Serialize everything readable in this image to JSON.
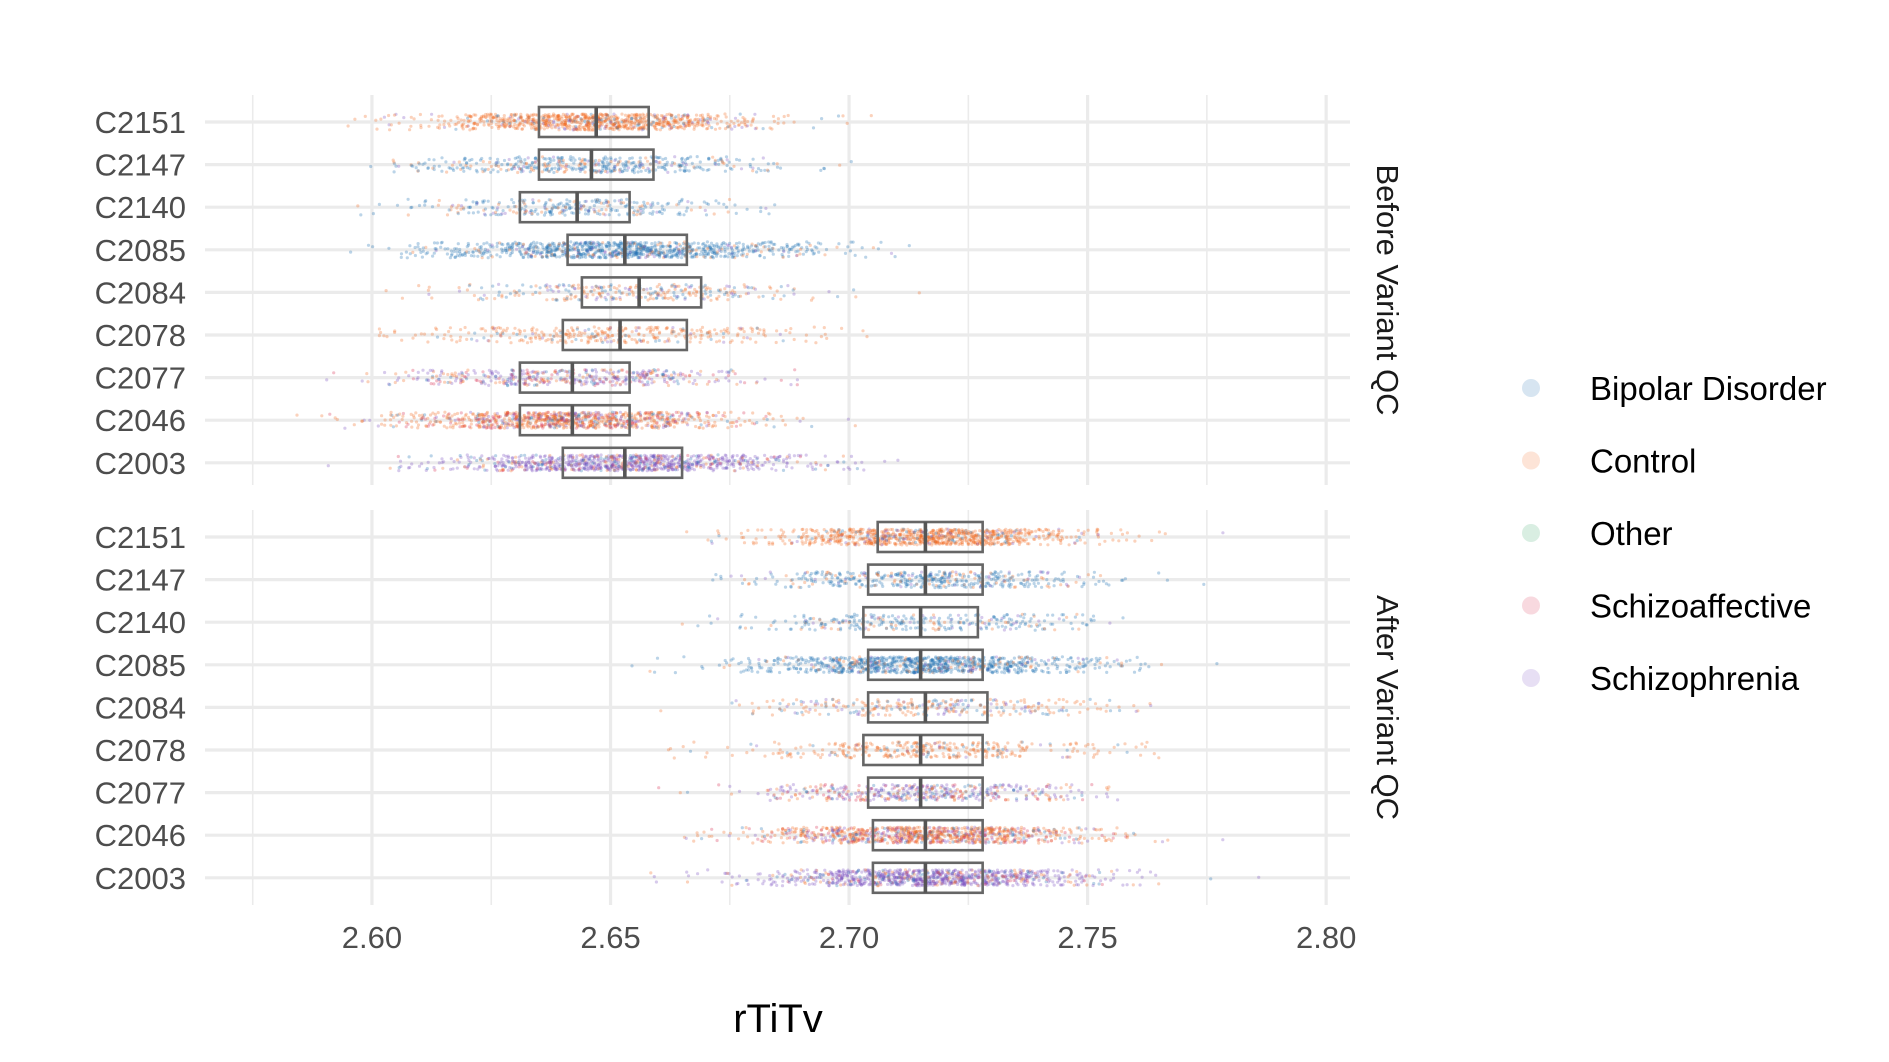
{
  "chart_data": {
    "type": "scatter",
    "subtype": "jittered strip plot with boxplots, faceted",
    "xlabel": "rTiTv",
    "ylabel": "",
    "xlim": [
      2.565,
      2.805
    ],
    "x_ticks": [
      2.6,
      2.65,
      2.7,
      2.75,
      2.8
    ],
    "x_tick_labels": [
      "2.60",
      "2.65",
      "2.70",
      "2.75",
      "2.80"
    ],
    "categories": [
      "C2151",
      "C2147",
      "C2140",
      "C2085",
      "C2084",
      "C2078",
      "C2077",
      "C2046",
      "C2003"
    ],
    "legend": {
      "placement": "right",
      "entries": [
        {
          "name": "Bipolar Disorder",
          "color": "#1f6fb4"
        },
        {
          "name": "Control",
          "color": "#f26b21"
        },
        {
          "name": "Other",
          "color": "#2ca25f"
        },
        {
          "name": "Schizoaffective",
          "color": "#d62b50"
        },
        {
          "name": "Schizophrenia",
          "color": "#7b4fc0"
        }
      ]
    },
    "facets": [
      {
        "strip_label": "Before Variant QC",
        "groups": [
          {
            "category": "C2151",
            "box": [
              2.635,
              2.647,
              2.658
            ],
            "range": [
              2.578,
              2.712
            ],
            "mix": {
              "Control": 0.85,
              "Bipolar Disorder": 0.08,
              "Schizophrenia": 0.07
            },
            "n": 900
          },
          {
            "category": "C2147",
            "box": [
              2.635,
              2.646,
              2.659
            ],
            "range": [
              2.584,
              2.705
            ],
            "mix": {
              "Bipolar Disorder": 0.7,
              "Control": 0.2,
              "Schizophrenia": 0.1
            },
            "n": 450
          },
          {
            "category": "C2140",
            "box": [
              2.631,
              2.643,
              2.654
            ],
            "range": [
              2.595,
              2.685
            ],
            "mix": {
              "Bipolar Disorder": 0.7,
              "Control": 0.2,
              "Schizophrenia": 0.1
            },
            "n": 300
          },
          {
            "category": "C2085",
            "box": [
              2.641,
              2.653,
              2.666
            ],
            "range": [
              2.594,
              2.722
            ],
            "mix": {
              "Bipolar Disorder": 0.85,
              "Control": 0.1,
              "Schizophrenia": 0.05
            },
            "n": 950
          },
          {
            "category": "C2084",
            "box": [
              2.644,
              2.656,
              2.669
            ],
            "range": [
              2.6,
              2.715
            ],
            "mix": {
              "Control": 0.55,
              "Bipolar Disorder": 0.3,
              "Schizophrenia": 0.15
            },
            "n": 300
          },
          {
            "category": "C2078",
            "box": [
              2.64,
              2.652,
              2.666
            ],
            "range": [
              2.601,
              2.705
            ],
            "mix": {
              "Control": 0.85,
              "Bipolar Disorder": 0.1,
              "Schizophrenia": 0.05
            },
            "n": 350
          },
          {
            "category": "C2077",
            "box": [
              2.631,
              2.642,
              2.654
            ],
            "range": [
              2.59,
              2.69
            ],
            "mix": {
              "Schizophrenia": 0.45,
              "Control": 0.25,
              "Bipolar Disorder": 0.15,
              "Schizoaffective": 0.15
            },
            "n": 450
          },
          {
            "category": "C2046",
            "box": [
              2.631,
              2.642,
              2.654
            ],
            "range": [
              2.575,
              2.704
            ],
            "mix": {
              "Control": 0.6,
              "Schizoaffective": 0.15,
              "Schizophrenia": 0.15,
              "Bipolar Disorder": 0.1
            },
            "n": 950
          },
          {
            "category": "C2003",
            "box": [
              2.64,
              2.653,
              2.665
            ],
            "range": [
              2.588,
              2.727
            ],
            "mix": {
              "Schizophrenia": 0.75,
              "Bipolar Disorder": 0.1,
              "Control": 0.1,
              "Schizoaffective": 0.05
            },
            "n": 950
          }
        ]
      },
      {
        "strip_label": "After Variant QC",
        "groups": [
          {
            "category": "C2151",
            "box": [
              2.706,
              2.716,
              2.728
            ],
            "range": [
              2.651,
              2.786
            ],
            "mix": {
              "Control": 0.85,
              "Bipolar Disorder": 0.08,
              "Schizophrenia": 0.07
            },
            "n": 900
          },
          {
            "category": "C2147",
            "box": [
              2.704,
              2.716,
              2.728
            ],
            "range": [
              2.661,
              2.775
            ],
            "mix": {
              "Bipolar Disorder": 0.7,
              "Control": 0.2,
              "Schizophrenia": 0.1
            },
            "n": 450
          },
          {
            "category": "C2140",
            "box": [
              2.703,
              2.715,
              2.727
            ],
            "range": [
              2.657,
              2.768
            ],
            "mix": {
              "Bipolar Disorder": 0.7,
              "Control": 0.2,
              "Schizophrenia": 0.1
            },
            "n": 300
          },
          {
            "category": "C2085",
            "box": [
              2.704,
              2.715,
              2.728
            ],
            "range": [
              2.651,
              2.786
            ],
            "mix": {
              "Bipolar Disorder": 0.85,
              "Control": 0.1,
              "Schizophrenia": 0.05
            },
            "n": 950
          },
          {
            "category": "C2084",
            "box": [
              2.704,
              2.716,
              2.729
            ],
            "range": [
              2.66,
              2.764
            ],
            "mix": {
              "Control": 0.55,
              "Bipolar Disorder": 0.3,
              "Schizophrenia": 0.15
            },
            "n": 300
          },
          {
            "category": "C2078",
            "box": [
              2.703,
              2.715,
              2.728
            ],
            "range": [
              2.662,
              2.765
            ],
            "mix": {
              "Control": 0.85,
              "Bipolar Disorder": 0.1,
              "Schizophrenia": 0.05
            },
            "n": 350
          },
          {
            "category": "C2077",
            "box": [
              2.704,
              2.715,
              2.728
            ],
            "range": [
              2.656,
              2.757
            ],
            "mix": {
              "Schizophrenia": 0.45,
              "Control": 0.25,
              "Bipolar Disorder": 0.15,
              "Schizoaffective": 0.15
            },
            "n": 450
          },
          {
            "category": "C2046",
            "box": [
              2.705,
              2.716,
              2.728
            ],
            "range": [
              2.645,
              2.792
            ],
            "mix": {
              "Control": 0.6,
              "Schizoaffective": 0.15,
              "Schizophrenia": 0.15,
              "Bipolar Disorder": 0.1
            },
            "n": 950
          },
          {
            "category": "C2003",
            "box": [
              2.705,
              2.716,
              2.728
            ],
            "range": [
              2.656,
              2.786
            ],
            "mix": {
              "Schizophrenia": 0.75,
              "Bipolar Disorder": 0.1,
              "Control": 0.1,
              "Schizoaffective": 0.05
            },
            "n": 950
          }
        ]
      }
    ]
  }
}
